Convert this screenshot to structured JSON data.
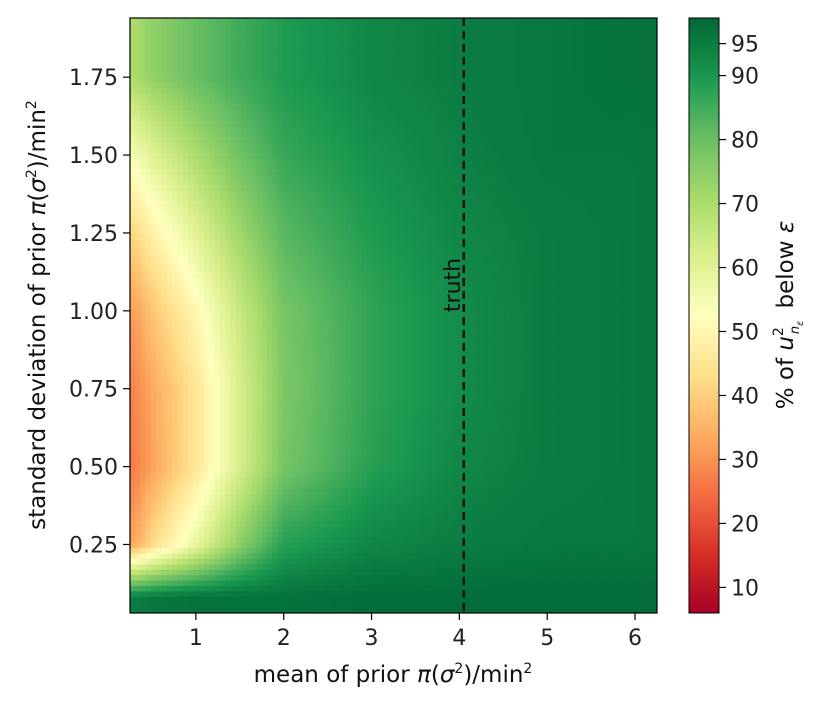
{
  "chart_data": {
    "type": "heatmap",
    "title": "",
    "xlabel": "mean of prior π(σ²)/min²",
    "ylabel": "standard deviation of prior π(σ²)/min²",
    "xlim": [
      0.25,
      6.25
    ],
    "ylim": [
      0.03,
      1.94
    ],
    "x_ticks": [
      1,
      2,
      3,
      4,
      5,
      6
    ],
    "x_tick_labels": [
      "1",
      "2",
      "3",
      "4",
      "5",
      "6"
    ],
    "y_ticks": [
      0.25,
      0.5,
      0.75,
      1.0,
      1.25,
      1.5,
      1.75
    ],
    "y_tick_labels": [
      "0.25",
      "0.50",
      "0.75",
      "1.00",
      "1.25",
      "1.50",
      "1.75"
    ],
    "grid": false,
    "colormap": "RdYlGn",
    "colorbar": {
      "label": "% of u² below ε",
      "label_subscript": "nε",
      "range": [
        6,
        99
      ],
      "ticks": [
        10,
        20,
        30,
        40,
        50,
        60,
        70,
        80,
        90,
        95
      ],
      "tick_labels": [
        "10",
        "20",
        "30",
        "40",
        "50",
        "60",
        "70",
        "80",
        "90",
        "95"
      ]
    },
    "reference_line": {
      "x": 4.05,
      "style": "dashed",
      "color": "#111111",
      "label": "truth"
    },
    "surface_samples": {
      "x": [
        0.3,
        0.5,
        1.0,
        1.5,
        2.0,
        3.0,
        4.0,
        5.0,
        6.0
      ],
      "y": [
        0.08,
        0.25,
        0.5,
        0.75,
        1.0,
        1.25,
        1.5,
        1.75
      ],
      "percent_below": [
        [
          95,
          96,
          97,
          97,
          97,
          98,
          98,
          98,
          98
        ],
        [
          33,
          42,
          58,
          75,
          88,
          93,
          95,
          96,
          96
        ],
        [
          27,
          32,
          45,
          62,
          78,
          88,
          93,
          95,
          96
        ],
        [
          28,
          33,
          45,
          62,
          77,
          87,
          92,
          95,
          96
        ],
        [
          32,
          38,
          50,
          65,
          78,
          87,
          92,
          95,
          96
        ],
        [
          42,
          48,
          60,
          72,
          82,
          89,
          93,
          95,
          96
        ],
        [
          55,
          60,
          70,
          79,
          86,
          91,
          94,
          96,
          96
        ],
        [
          70,
          74,
          80,
          85,
          89,
          93,
          95,
          96,
          97
        ]
      ]
    }
  },
  "colors": {
    "colormap_stops": [
      "#a50026",
      "#d73027",
      "#f46d43",
      "#fdae61",
      "#fee08b",
      "#ffffbf",
      "#d9ef8b",
      "#a6d96a",
      "#66bd63",
      "#1a9850",
      "#006837"
    ],
    "axis": "#000000",
    "text": "#111111"
  }
}
